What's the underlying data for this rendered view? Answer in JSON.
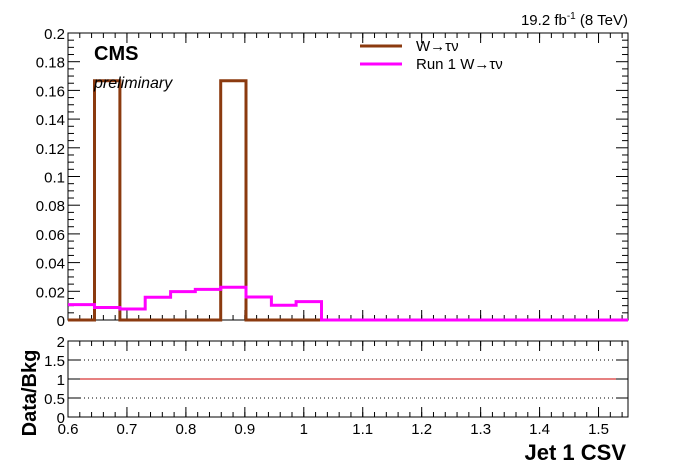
{
  "header": {
    "lumi_value": "19.2 fb",
    "lumi_exp": "-1",
    "energy": "(8 TeV)"
  },
  "labels": {
    "experiment": "CMS",
    "status": "preliminary"
  },
  "chart_data": [
    {
      "type": "line",
      "step": true,
      "title": "",
      "xlabel": "",
      "ylabel": "",
      "xlim": [
        0.6,
        1.55
      ],
      "ylim": [
        0,
        0.2
      ],
      "y_ticks": [
        0,
        0.02,
        0.04,
        0.06,
        0.08,
        0.1,
        0.12,
        0.14,
        0.16,
        0.18,
        0.2
      ],
      "y_tick_labels": [
        "0",
        "0.02",
        "0.04",
        "0.06",
        "0.08",
        "0.1",
        "0.12",
        "0.14",
        "0.16",
        "0.18",
        "0.2"
      ],
      "legend_position": "top-right",
      "series": [
        {
          "name": "W→τν",
          "color": "#8b3a0f",
          "x": [
            0.6,
            0.645,
            0.645,
            0.688,
            0.688,
            0.859,
            0.859,
            0.902,
            0.902,
            1.55
          ],
          "y": [
            0,
            0,
            0.1667,
            0.1667,
            0,
            0,
            0.1667,
            0.1667,
            0,
            0
          ]
        },
        {
          "name": "Run 1 W→τν",
          "color": "#ff00ff",
          "x": [
            0.6,
            0.645,
            0.645,
            0.688,
            0.688,
            0.731,
            0.731,
            0.774,
            0.774,
            0.816,
            0.816,
            0.859,
            0.859,
            0.902,
            0.902,
            0.945,
            0.945,
            0.987,
            0.987,
            1.03,
            1.03,
            1.55
          ],
          "y": [
            0.0107,
            0.0107,
            0.0087,
            0.0087,
            0.0077,
            0.0077,
            0.0158,
            0.0158,
            0.0198,
            0.0198,
            0.0213,
            0.0213,
            0.0228,
            0.0228,
            0.016,
            0.016,
            0.0103,
            0.0103,
            0.0128,
            0.0128,
            0,
            0
          ]
        }
      ]
    },
    {
      "type": "line",
      "title": "",
      "xlabel": "Jet 1 CSV",
      "ylabel": "Data/Bkg",
      "xlim": [
        0.6,
        1.55
      ],
      "ylim": [
        0,
        2
      ],
      "x_ticks": [
        0.6,
        0.7,
        0.8,
        0.9,
        1.0,
        1.1,
        1.2,
        1.3,
        1.4,
        1.5
      ],
      "x_tick_labels": [
        "0.6",
        "0.7",
        "0.8",
        "0.9",
        "1",
        "1.1",
        "1.2",
        "1.3",
        "1.4",
        "1.5"
      ],
      "y_ticks": [
        0,
        0.5,
        1,
        1.5,
        2
      ],
      "y_tick_labels": [
        "0",
        "0.5",
        "1",
        "1.5",
        "2"
      ],
      "dotted_reference_lines": [
        0.5,
        1.5
      ],
      "reference_line": {
        "y": 1,
        "color": "#cc0000"
      }
    }
  ]
}
